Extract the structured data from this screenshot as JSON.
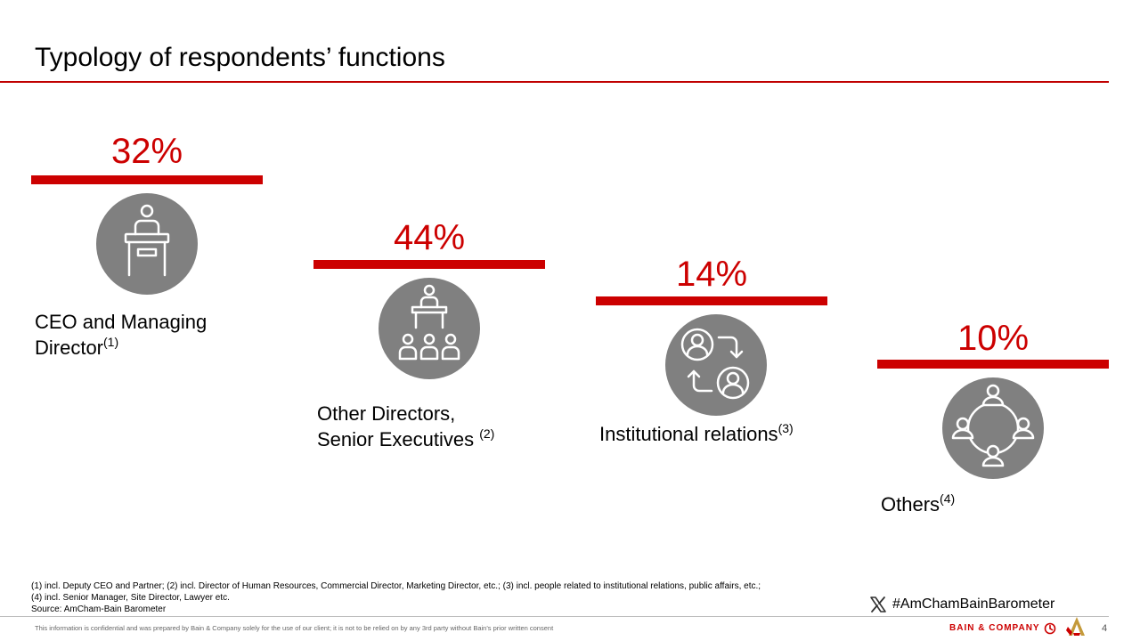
{
  "page": {
    "title": "Typology of respondents’ functions",
    "accent_color": "#cc0000",
    "icon_bg_color": "#808080"
  },
  "categories": [
    {
      "percent": "32%",
      "value": 32,
      "label_line1": "CEO and Managing",
      "label_line2": "Director",
      "note": "(1)",
      "icon": "presenter-podium-icon"
    },
    {
      "percent": "44%",
      "value": 44,
      "label_line1": "Other Directors,",
      "label_line2": "Senior Executives ",
      "note": "(2)",
      "icon": "presenter-audience-icon"
    },
    {
      "percent": "14%",
      "value": 14,
      "label_line1": "Institutional relations",
      "note": "(3)",
      "icon": "people-exchange-icon"
    },
    {
      "percent": "10%",
      "value": 10,
      "label_line1": "Others",
      "note": "(4)",
      "icon": "people-circle-icon"
    }
  ],
  "footnotes": {
    "line1": "(1) incl. Deputy CEO and Partner; (2) incl. Director of Human Resources, Commercial Director, Marketing Director, etc.; (3) incl. people related to institutional relations, public affairs, etc.;",
    "line2": "(4) incl. Senior Manager, Site Director, Lawyer etc.",
    "source": "Source: AmCham-Bain Barometer"
  },
  "hashtag": {
    "icon": "x-logo-icon",
    "text": "#AmChamBainBarometer"
  },
  "footer": {
    "confidential": "This information is confidential and was prepared by Bain & Company solely for the use of our client; it is not to be relied on by any 3rd party without Bain's prior written consent",
    "brand": "BAIN & COMPANY",
    "page_number": "4"
  }
}
